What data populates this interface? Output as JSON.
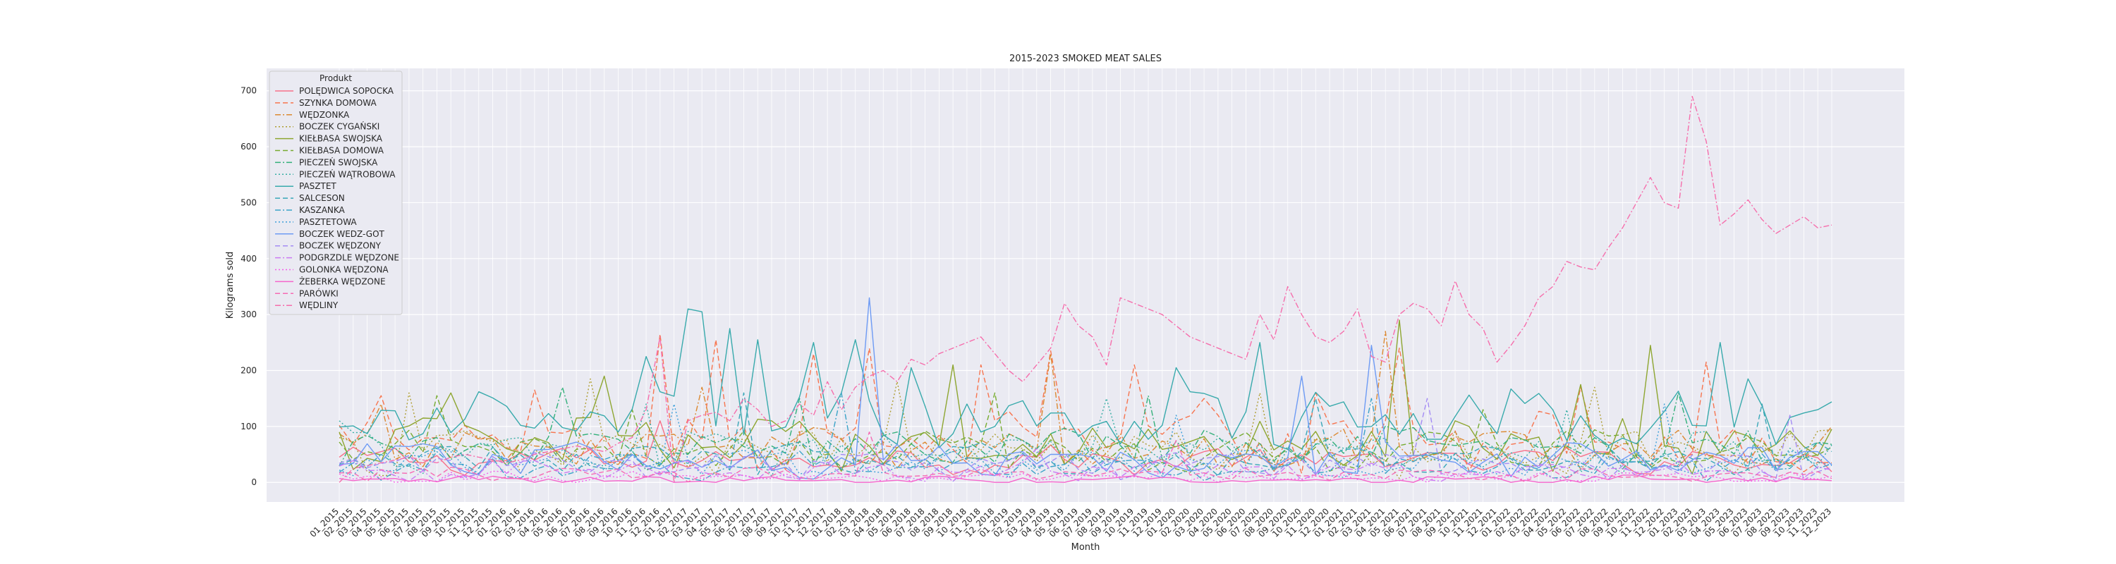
{
  "chart_data": {
    "type": "line",
    "title": "2015-2023 SMOKED MEAT SALES",
    "xlabel": "Month",
    "ylabel": "Kilograms sold",
    "ylim": [
      -35,
      740
    ],
    "yticks": [
      0,
      100,
      200,
      300,
      400,
      500,
      600,
      700
    ],
    "grid": true,
    "legend_title": "Produkt",
    "legend_position": "top-left",
    "x": [
      "01_2015",
      "02_2015",
      "03_2015",
      "04_2015",
      "05_2015",
      "06_2015",
      "07_2015",
      "08_2015",
      "09_2015",
      "10_2015",
      "11_2015",
      "12_2015",
      "01_2016",
      "02_2016",
      "03_2016",
      "04_2016",
      "05_2016",
      "06_2016",
      "07_2016",
      "08_2016",
      "09_2016",
      "10_2016",
      "11_2016",
      "12_2016",
      "01_2017",
      "02_2017",
      "03_2017",
      "04_2017",
      "05_2017",
      "06_2017",
      "07_2017",
      "08_2017",
      "09_2017",
      "10_2017",
      "11_2017",
      "12_2017",
      "01_2018",
      "02_2018",
      "03_2018",
      "04_2018",
      "05_2018",
      "06_2018",
      "07_2018",
      "08_2018",
      "09_2018",
      "10_2018",
      "11_2018",
      "12_2018",
      "01_2019",
      "02_2019",
      "03_2019",
      "04_2019",
      "05_2019",
      "06_2019",
      "07_2019",
      "08_2019",
      "09_2019",
      "10_2019",
      "11_2019",
      "12_2019",
      "01_2020",
      "02_2020",
      "03_2020",
      "04_2020",
      "05_2020",
      "06_2020",
      "07_2020",
      "08_2020",
      "09_2020",
      "10_2020",
      "11_2020",
      "12_2020",
      "01_2021",
      "02_2021",
      "03_2021",
      "04_2021",
      "05_2021",
      "06_2021",
      "07_2021",
      "08_2021",
      "09_2021",
      "10_2021",
      "11_2021",
      "12_2021",
      "01_2022",
      "02_2022",
      "03_2022",
      "04_2022",
      "05_2022",
      "06_2022",
      "07_2022",
      "08_2022",
      "09_2022",
      "10_2022",
      "11_2022",
      "12_2022",
      "01_2023",
      "02_2023",
      "03_2023",
      "04_2023",
      "05_2023",
      "06_2023",
      "07_2023",
      "08_2023",
      "09_2023",
      "10_2023",
      "11_2023",
      "12_2023"
    ],
    "series": [
      {
        "name": "POLĘDWICA SOPOCKA",
        "color": "#f77189",
        "dash": "solid",
        "base": 40,
        "amp": 20,
        "peaks": {
          "23": 110
        }
      },
      {
        "name": "SZYNKA DOMOWA",
        "color": "#f7754f",
        "dash": "dashed",
        "base": 70,
        "amp": 45,
        "peaks": {
          "3": 155,
          "14": 165,
          "23": 265,
          "27": 255,
          "34": 230,
          "38": 240,
          "46": 210,
          "51": 235,
          "57": 210,
          "62": 150,
          "70": 160,
          "76": 240,
          "89": 170,
          "98": 215
        }
      },
      {
        "name": "WĘDZONKA",
        "color": "#dc8932",
        "dash": "dashdot",
        "base": 60,
        "amp": 30,
        "peaks": {
          "3": 140,
          "26": 170,
          "51": 230,
          "75": 270
        }
      },
      {
        "name": "BOCZEK CYGAŃSKI",
        "color": "#ae9d31",
        "dash": "dotted",
        "base": 55,
        "amp": 35,
        "peaks": {
          "5": 160,
          "18": 185,
          "40": 180,
          "66": 160,
          "90": 170
        }
      },
      {
        "name": "KIEŁBASA SWOJSKA",
        "color": "#8ea631",
        "dash": "solid",
        "base": 70,
        "amp": 40,
        "peaks": {
          "8": 160,
          "19": 190,
          "44": 210,
          "76": 290,
          "89": 175,
          "94": 245
        }
      },
      {
        "name": "KIEŁBASA DOMOWA",
        "color": "#77ab31",
        "dash": "dashed",
        "base": 55,
        "amp": 30,
        "peaks": {
          "7": 155,
          "21": 130,
          "47": 160,
          "82": 130
        }
      },
      {
        "name": "PIECZEŃ SWOJSKA",
        "color": "#33b07a",
        "dash": "dashdot",
        "base": 60,
        "amp": 30,
        "peaks": {
          "16": 170,
          "33": 150,
          "58": 155,
          "96": 160
        }
      },
      {
        "name": "PIECZEŃ WĄTROBOWA",
        "color": "#36ada4",
        "dash": "dotted",
        "base": 50,
        "amp": 30,
        "peaks": {
          "0": 110,
          "22": 140,
          "55": 150,
          "88": 130
        }
      },
      {
        "name": "PASZTET",
        "color": "#38aaac",
        "dash": "solid",
        "base": 110,
        "amp": 45,
        "peaks": {
          "22": 225,
          "25": 310,
          "26": 305,
          "28": 275,
          "30": 255,
          "34": 250,
          "37": 255,
          "41": 205,
          "60": 205,
          "66": 250,
          "99": 250,
          "101": 185
        }
      },
      {
        "name": "SALCESON",
        "color": "#39a7b8",
        "dash": "dashed",
        "base": 40,
        "amp": 25,
        "peaks": {
          "29": 160,
          "70": 150,
          "102": 140
        }
      },
      {
        "name": "KASZANKA",
        "color": "#3ba3c8",
        "dash": "dashdot",
        "base": 30,
        "amp": 20,
        "peaks": {
          "36": 160,
          "74": 150
        }
      },
      {
        "name": "PASZTETOWA",
        "color": "#3d9fd9",
        "dash": "dotted",
        "base": 35,
        "amp": 20,
        "peaks": {
          "24": 140,
          "60": 120,
          "95": 140
        }
      },
      {
        "name": "BOCZEK WEDZ-GOT",
        "color": "#6e9bf4",
        "dash": "solid",
        "base": 40,
        "amp": 25,
        "peaks": {
          "38": 330,
          "69": 190,
          "74": 245
        }
      },
      {
        "name": "BOCZEK WĘDZONY",
        "color": "#a48cf4",
        "dash": "dashed",
        "base": 30,
        "amp": 20,
        "peaks": {
          "78": 150,
          "104": 120
        }
      },
      {
        "name": "PODGRZDLE WĘDZONE",
        "color": "#cc7af4",
        "dash": "dashdot",
        "base": 20,
        "amp": 15,
        "peaks": {
          "50": 60
        }
      },
      {
        "name": "GOLONKA WĘDZONA",
        "color": "#f45deb",
        "dash": "dotted",
        "base": 10,
        "amp": 8,
        "peaks": {}
      },
      {
        "name": "ŻEBERKA WĘDZONE",
        "color": "#f565cc",
        "dash": "solid",
        "base": 5,
        "amp": 6,
        "peaks": {}
      },
      {
        "name": "PARÓWKI",
        "color": "#f66bb4",
        "dash": "dashed",
        "base": 15,
        "amp": 10,
        "peaks": {
          "38": 90,
          "60": 75
        }
      },
      {
        "name": "WĘDLINY",
        "color": "#f66eac",
        "dash": "dashdot",
        "values": [
          0,
          25,
          30,
          35,
          40,
          45,
          40,
          35,
          45,
          50,
          45,
          40,
          35,
          40,
          50,
          55,
          60,
          65,
          60,
          55,
          70,
          80,
          130,
          260,
          0,
          110,
          120,
          125,
          110,
          150,
          130,
          100,
          110,
          140,
          120,
          180,
          130,
          170,
          190,
          200,
          180,
          220,
          210,
          230,
          240,
          250,
          260,
          230,
          200,
          180,
          210,
          240,
          320,
          280,
          260,
          210,
          330,
          320,
          310,
          300,
          280,
          260,
          250,
          240,
          230,
          220,
          300,
          255,
          350,
          300,
          260,
          250,
          270,
          310,
          225,
          215,
          300,
          320,
          310,
          280,
          360,
          300,
          275,
          215,
          245,
          280,
          330,
          350,
          395,
          385,
          380,
          420,
          455,
          500,
          545,
          500,
          490,
          690,
          610,
          460,
          480,
          505,
          470,
          445,
          460,
          475,
          455,
          460
        ]
      }
    ]
  }
}
